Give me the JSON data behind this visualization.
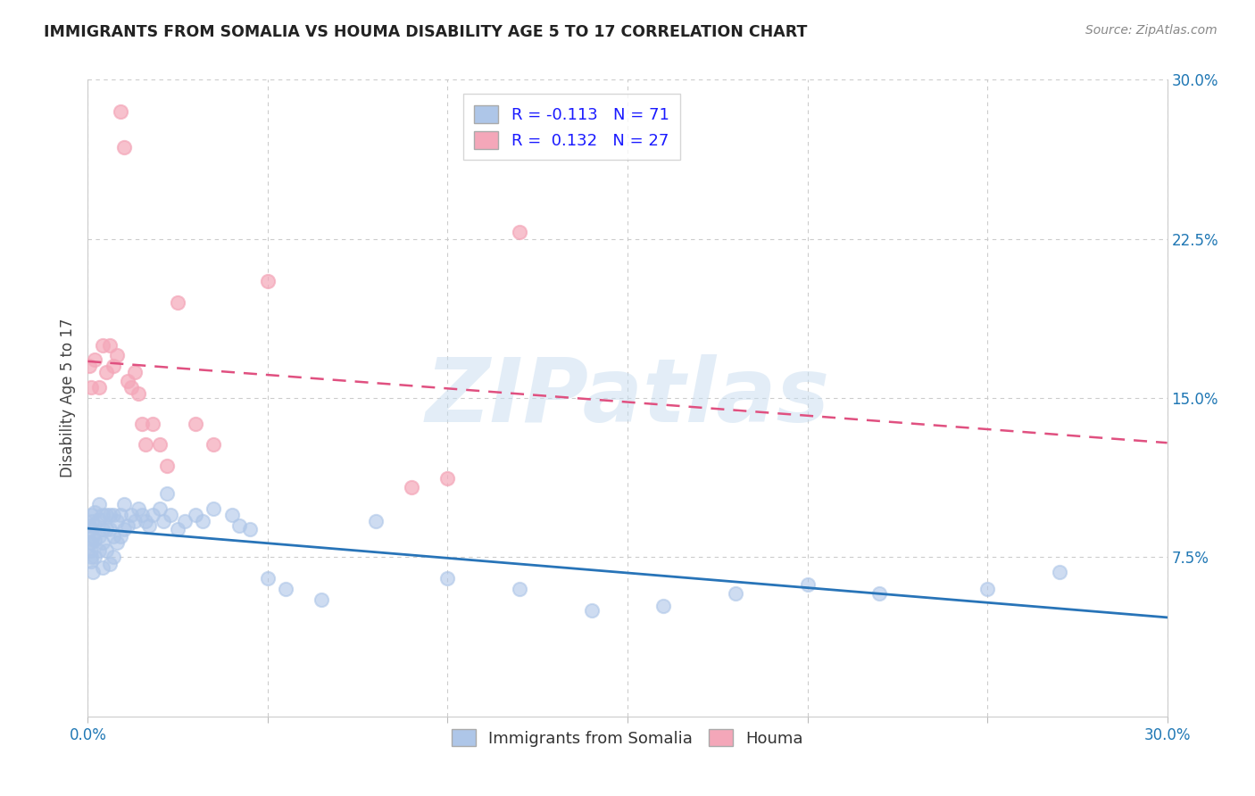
{
  "title": "IMMIGRANTS FROM SOMALIA VS HOUMA DISABILITY AGE 5 TO 17 CORRELATION CHART",
  "source": "Source: ZipAtlas.com",
  "ylabel": "Disability Age 5 to 17",
  "x_min": 0.0,
  "x_max": 0.3,
  "y_min": 0.0,
  "y_max": 0.3,
  "x_tick_positions": [
    0.0,
    0.05,
    0.1,
    0.15,
    0.2,
    0.25,
    0.3
  ],
  "x_tick_labels": [
    "0.0%",
    "",
    "",
    "",
    "",
    "",
    "30.0%"
  ],
  "y_ticks_right": [
    0.075,
    0.15,
    0.225,
    0.3
  ],
  "y_tick_labels_right": [
    "7.5%",
    "15.0%",
    "22.5%",
    "30.0%"
  ],
  "legend_somalia_label": "Immigrants from Somalia",
  "legend_houma_label": "Houma",
  "somalia_color": "#aec6e8",
  "houma_color": "#f4a7b9",
  "somalia_line_color": "#2874b8",
  "houma_line_color": "#e05080",
  "r_somalia": -0.113,
  "n_somalia": 71,
  "r_houma": 0.132,
  "n_houma": 27,
  "somalia_x": [
    0.0005,
    0.0005,
    0.0008,
    0.001,
    0.001,
    0.001,
    0.001,
    0.001,
    0.0012,
    0.0015,
    0.0015,
    0.002,
    0.002,
    0.002,
    0.002,
    0.003,
    0.003,
    0.003,
    0.003,
    0.004,
    0.004,
    0.004,
    0.004,
    0.005,
    0.005,
    0.005,
    0.006,
    0.006,
    0.006,
    0.007,
    0.007,
    0.007,
    0.008,
    0.008,
    0.009,
    0.009,
    0.01,
    0.01,
    0.011,
    0.012,
    0.013,
    0.014,
    0.015,
    0.016,
    0.017,
    0.018,
    0.02,
    0.021,
    0.022,
    0.023,
    0.025,
    0.027,
    0.03,
    0.032,
    0.035,
    0.04,
    0.042,
    0.045,
    0.05,
    0.055,
    0.065,
    0.08,
    0.1,
    0.12,
    0.14,
    0.16,
    0.18,
    0.2,
    0.22,
    0.25,
    0.27
  ],
  "somalia_y": [
    0.09,
    0.082,
    0.075,
    0.095,
    0.088,
    0.082,
    0.078,
    0.073,
    0.092,
    0.085,
    0.068,
    0.096,
    0.09,
    0.083,
    0.075,
    0.1,
    0.093,
    0.085,
    0.078,
    0.095,
    0.088,
    0.082,
    0.07,
    0.095,
    0.088,
    0.078,
    0.095,
    0.088,
    0.072,
    0.095,
    0.085,
    0.075,
    0.092,
    0.082,
    0.095,
    0.085,
    0.1,
    0.088,
    0.09,
    0.095,
    0.092,
    0.098,
    0.095,
    0.092,
    0.09,
    0.095,
    0.098,
    0.092,
    0.105,
    0.095,
    0.088,
    0.092,
    0.095,
    0.092,
    0.098,
    0.095,
    0.09,
    0.088,
    0.065,
    0.06,
    0.055,
    0.092,
    0.065,
    0.06,
    0.05,
    0.052,
    0.058,
    0.062,
    0.058,
    0.06,
    0.068
  ],
  "houma_x": [
    0.0005,
    0.001,
    0.002,
    0.003,
    0.004,
    0.005,
    0.006,
    0.007,
    0.008,
    0.009,
    0.01,
    0.011,
    0.012,
    0.013,
    0.014,
    0.015,
    0.016,
    0.018,
    0.02,
    0.022,
    0.025,
    0.03,
    0.035,
    0.05,
    0.09,
    0.1,
    0.12
  ],
  "houma_y": [
    0.165,
    0.155,
    0.168,
    0.155,
    0.175,
    0.162,
    0.175,
    0.165,
    0.17,
    0.285,
    0.268,
    0.158,
    0.155,
    0.162,
    0.152,
    0.138,
    0.128,
    0.138,
    0.128,
    0.118,
    0.195,
    0.138,
    0.128,
    0.205,
    0.108,
    0.112,
    0.228
  ],
  "watermark": "ZIPatlas",
  "background_color": "#ffffff",
  "grid_color": "#cccccc"
}
